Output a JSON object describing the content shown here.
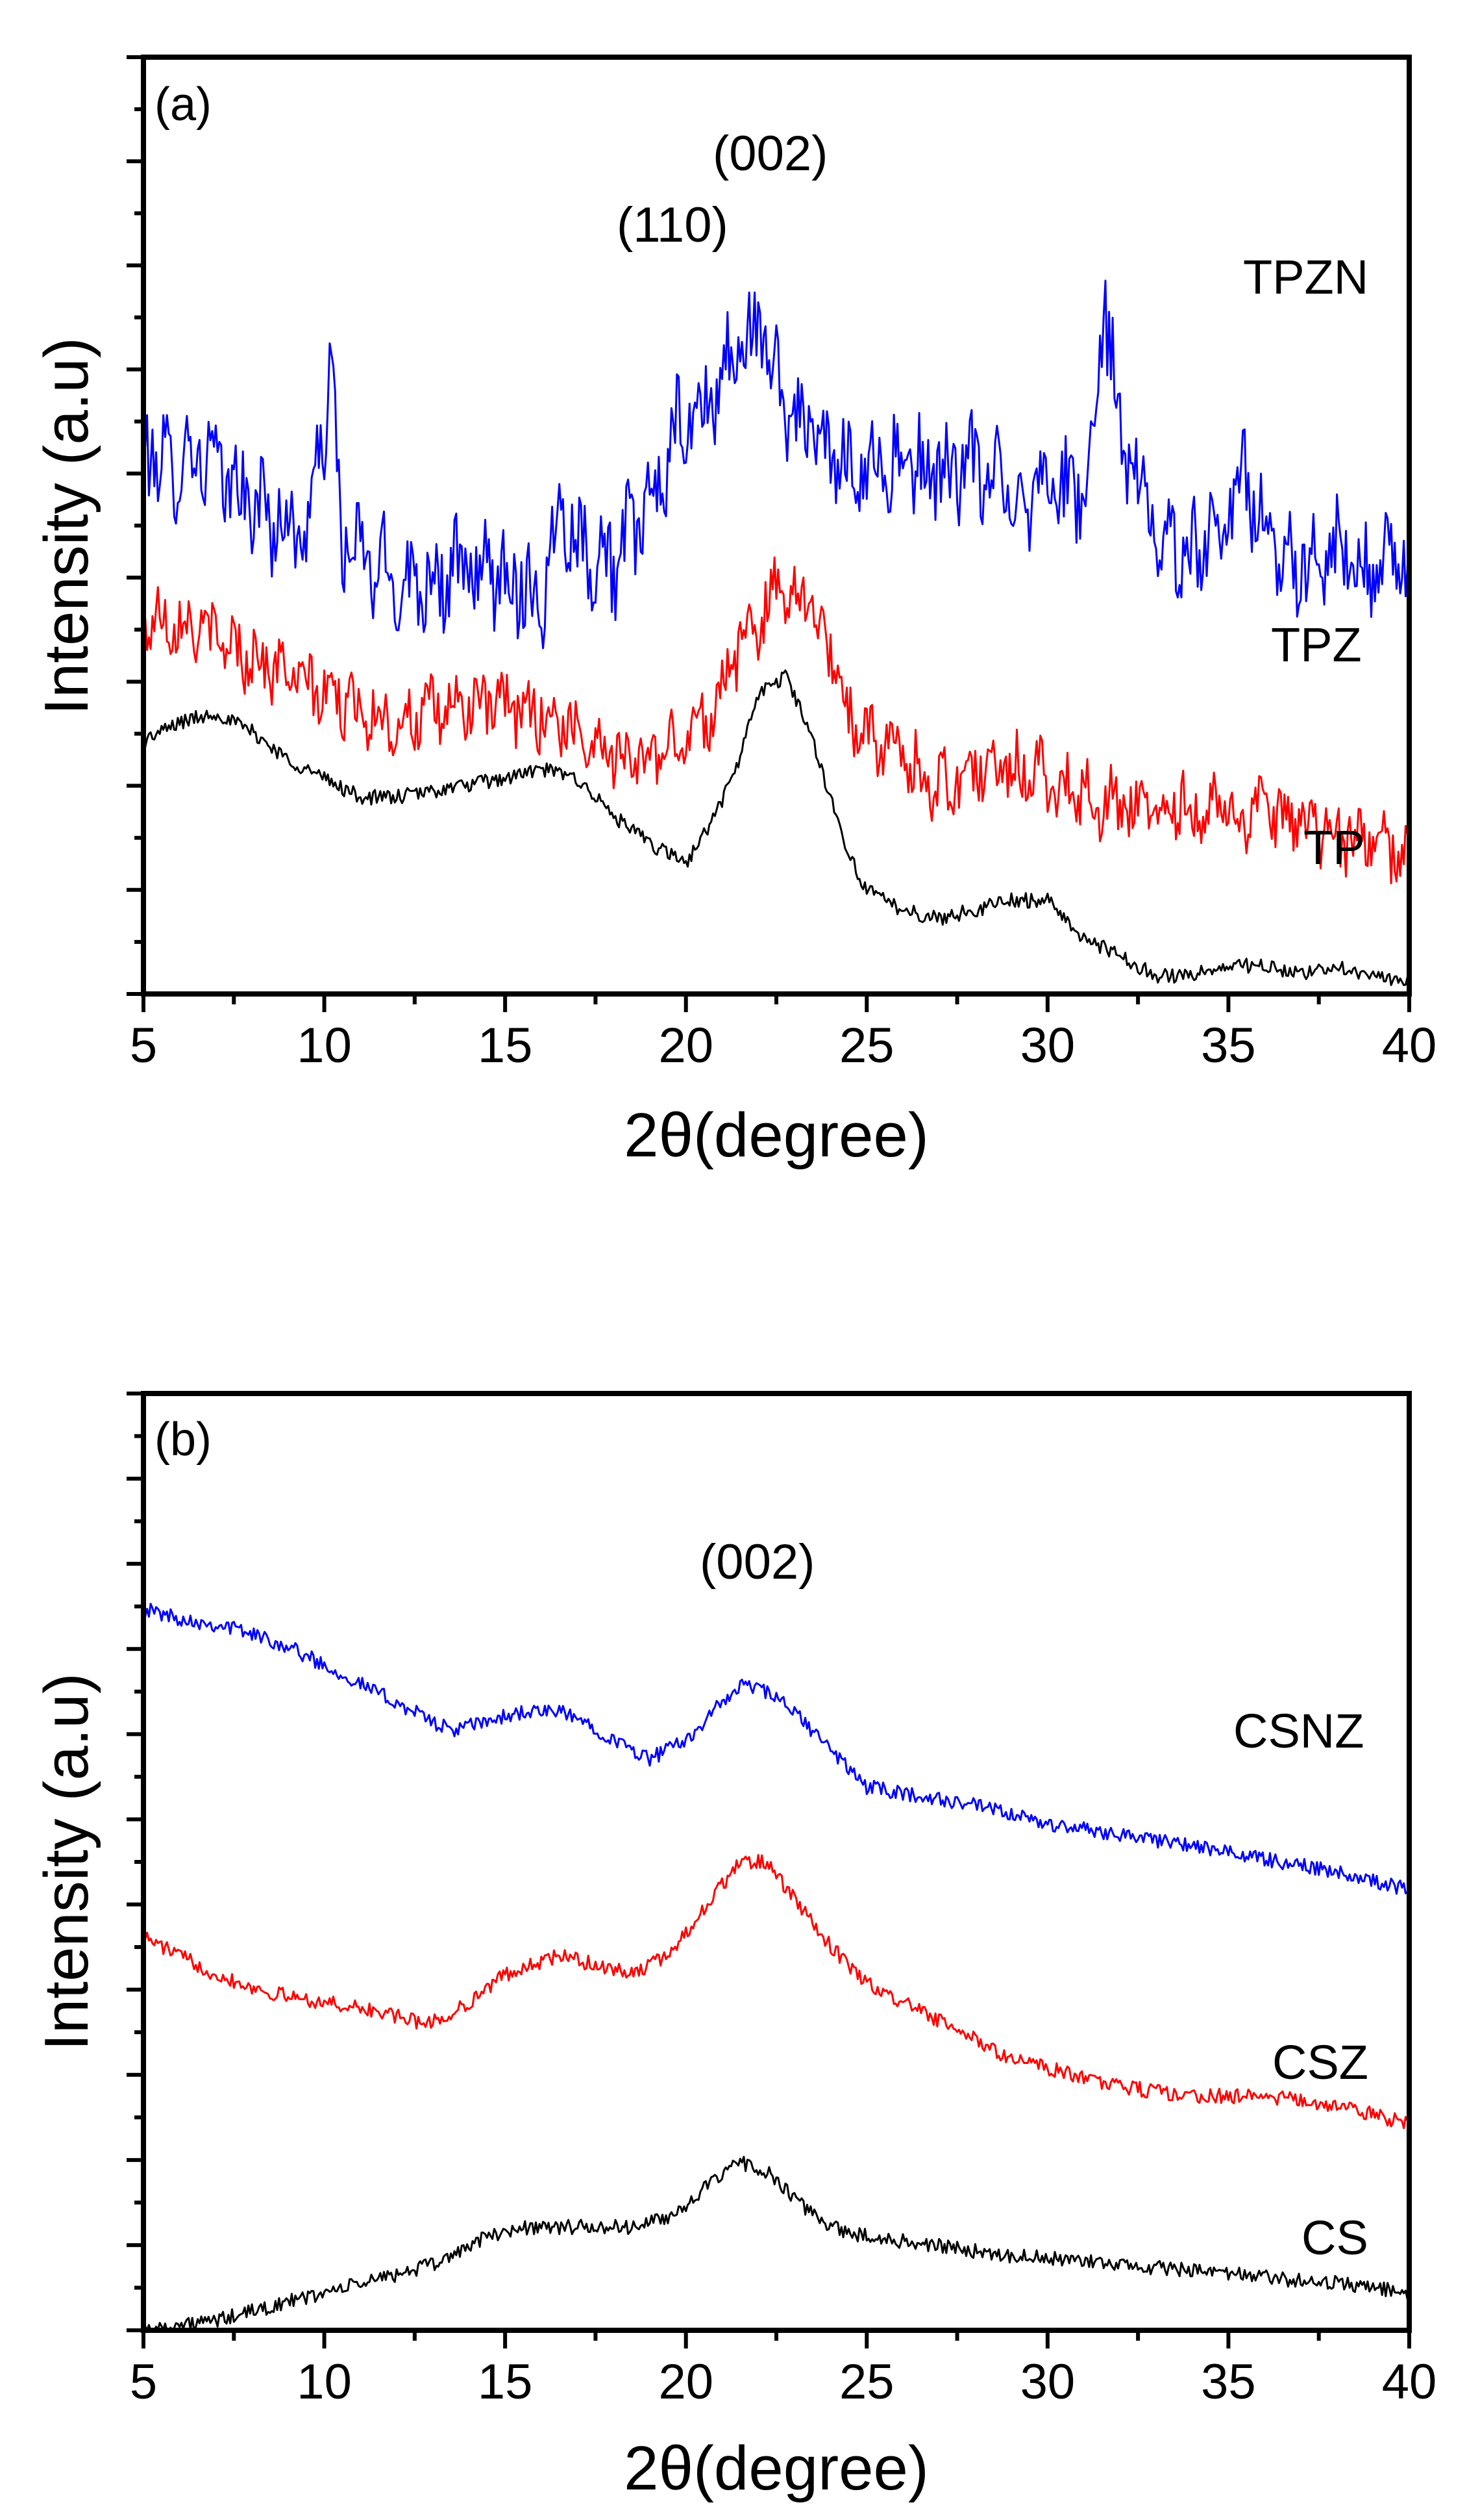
{
  "chart_data": [
    {
      "type": "line",
      "panel_label": "(a)",
      "xlabel": "2θ(degree)",
      "ylabel": "Intensity (a.u)",
      "xlim": [
        5,
        40
      ],
      "x_ticks": [
        5,
        10,
        15,
        20,
        25,
        30,
        35,
        40
      ],
      "y_tick_labels": "none",
      "annotations": [
        "(110)",
        "(002)"
      ],
      "series": [
        {
          "name": "TPZN",
          "color": "#0000ff",
          "noise": "strong-spiky",
          "points": [
            [
              5,
              0.6
            ],
            [
              5.5,
              0.56
            ],
            [
              6.5,
              0.58
            ],
            [
              7.5,
              0.54
            ],
            [
              8.5,
              0.51
            ],
            [
              9.5,
              0.49
            ],
            [
              10.2,
              0.66
            ],
            [
              10.5,
              0.48
            ],
            [
              12,
              0.44
            ],
            [
              14,
              0.45
            ],
            [
              15,
              0.45
            ],
            [
              16,
              0.42
            ],
            [
              16.6,
              0.53
            ],
            [
              17,
              0.48
            ],
            [
              18,
              0.46
            ],
            [
              19,
              0.52
            ],
            [
              19.8,
              0.6
            ],
            [
              20.5,
              0.62
            ],
            [
              21.3,
              0.68
            ],
            [
              22,
              0.71
            ],
            [
              22.8,
              0.63
            ],
            [
              24,
              0.57
            ],
            [
              26,
              0.56
            ],
            [
              28,
              0.56
            ],
            [
              29.4,
              0.53
            ],
            [
              30,
              0.56
            ],
            [
              30.6,
              0.53
            ],
            [
              31.2,
              0.55
            ],
            [
              31.6,
              0.74
            ],
            [
              32,
              0.6
            ],
            [
              33,
              0.49
            ],
            [
              34,
              0.47
            ],
            [
              35,
              0.52
            ],
            [
              35.5,
              0.56
            ],
            [
              36,
              0.48
            ],
            [
              37,
              0.46
            ],
            [
              38,
              0.47
            ],
            [
              39,
              0.45
            ],
            [
              40,
              0.46
            ]
          ]
        },
        {
          "name": "TPZ",
          "color": "#ff0000",
          "noise": "strong",
          "points": [
            [
              5,
              0.4
            ],
            [
              6,
              0.4
            ],
            [
              7,
              0.38
            ],
            [
              8,
              0.36
            ],
            [
              10,
              0.32
            ],
            [
              12,
              0.29
            ],
            [
              14,
              0.31
            ],
            [
              16,
              0.3
            ],
            [
              17.5,
              0.27
            ],
            [
              18.5,
              0.25
            ],
            [
              19.5,
              0.26
            ],
            [
              20.5,
              0.29
            ],
            [
              21.5,
              0.37
            ],
            [
              22.5,
              0.43
            ],
            [
              23.2,
              0.43
            ],
            [
              24,
              0.37
            ],
            [
              24.5,
              0.3
            ],
            [
              25,
              0.28
            ],
            [
              26,
              0.25
            ],
            [
              27,
              0.22
            ],
            [
              28,
              0.24
            ],
            [
              29.5,
              0.24
            ],
            [
              30.5,
              0.22
            ],
            [
              32,
              0.2
            ],
            [
              34,
              0.2
            ],
            [
              36,
              0.19
            ],
            [
              38,
              0.17
            ],
            [
              40,
              0.15
            ]
          ]
        },
        {
          "name": "TP",
          "color": "#000000",
          "noise": "mild",
          "points": [
            [
              5,
              0.27
            ],
            [
              6,
              0.29
            ],
            [
              7,
              0.3
            ],
            [
              8,
              0.28
            ],
            [
              9,
              0.25
            ],
            [
              10,
              0.23
            ],
            [
              11,
              0.21
            ],
            [
              12,
              0.21
            ],
            [
              13.5,
              0.22
            ],
            [
              15,
              0.23
            ],
            [
              16,
              0.24
            ],
            [
              17,
              0.23
            ],
            [
              18,
              0.19
            ],
            [
              19,
              0.16
            ],
            [
              19.5,
              0.15
            ],
            [
              20,
              0.14
            ],
            [
              20.5,
              0.17
            ],
            [
              21.3,
              0.23
            ],
            [
              22,
              0.32
            ],
            [
              22.8,
              0.34
            ],
            [
              23.5,
              0.27
            ],
            [
              24,
              0.21
            ],
            [
              24.5,
              0.15
            ],
            [
              25,
              0.11
            ],
            [
              26,
              0.09
            ],
            [
              27,
              0.08
            ],
            [
              28,
              0.09
            ],
            [
              29,
              0.1
            ],
            [
              30,
              0.1
            ],
            [
              31,
              0.06
            ],
            [
              32,
              0.04
            ],
            [
              33,
              0.02
            ],
            [
              34,
              0.02
            ],
            [
              35,
              0.03
            ],
            [
              36,
              0.03
            ],
            [
              37,
              0.02
            ],
            [
              38,
              0.03
            ],
            [
              39,
              0.02
            ],
            [
              40,
              0.01
            ]
          ]
        }
      ]
    },
    {
      "type": "line",
      "panel_label": "(b)",
      "xlabel": "2θ(degree)",
      "ylabel": "Intensity (a.u)",
      "xlim": [
        5,
        40
      ],
      "x_ticks": [
        5,
        10,
        15,
        20,
        25,
        30,
        35,
        40
      ],
      "y_tick_labels": "none",
      "annotations": [
        "(002)"
      ],
      "series": [
        {
          "name": "CSNZ",
          "color": "#0000ff",
          "noise": "mild",
          "points": [
            [
              5,
              0.77
            ],
            [
              6,
              0.76
            ],
            [
              7.5,
              0.75
            ],
            [
              9,
              0.73
            ],
            [
              10.5,
              0.7
            ],
            [
              11.5,
              0.68
            ],
            [
              12.5,
              0.66
            ],
            [
              13.5,
              0.64
            ],
            [
              14.5,
              0.65
            ],
            [
              15.5,
              0.66
            ],
            [
              16.5,
              0.66
            ],
            [
              17.2,
              0.65
            ],
            [
              18,
              0.63
            ],
            [
              18.5,
              0.62
            ],
            [
              19,
              0.61
            ],
            [
              20,
              0.63
            ],
            [
              21,
              0.67
            ],
            [
              21.6,
              0.69
            ],
            [
              22.3,
              0.68
            ],
            [
              23,
              0.66
            ],
            [
              24,
              0.62
            ],
            [
              25,
              0.58
            ],
            [
              26.5,
              0.57
            ],
            [
              28,
              0.56
            ],
            [
              30,
              0.54
            ],
            [
              32,
              0.53
            ],
            [
              35,
              0.51
            ],
            [
              38,
              0.49
            ],
            [
              40,
              0.47
            ]
          ]
        },
        {
          "name": "CSZ",
          "color": "#ff0000",
          "noise": "mild",
          "points": [
            [
              5,
              0.42
            ],
            [
              6,
              0.4
            ],
            [
              7,
              0.38
            ],
            [
              8.5,
              0.36
            ],
            [
              10,
              0.35
            ],
            [
              11.5,
              0.34
            ],
            [
              12.5,
              0.33
            ],
            [
              13.2,
              0.33
            ],
            [
              14,
              0.35
            ],
            [
              15,
              0.38
            ],
            [
              16.5,
              0.4
            ],
            [
              17.5,
              0.39
            ],
            [
              18.5,
              0.38
            ],
            [
              19.5,
              0.4
            ],
            [
              20.5,
              0.45
            ],
            [
              21.5,
              0.5
            ],
            [
              22.2,
              0.5
            ],
            [
              23,
              0.46
            ],
            [
              24,
              0.41
            ],
            [
              25,
              0.37
            ],
            [
              26,
              0.35
            ],
            [
              27,
              0.33
            ],
            [
              28,
              0.31
            ],
            [
              29,
              0.29
            ],
            [
              30,
              0.28
            ],
            [
              32,
              0.26
            ],
            [
              34,
              0.25
            ],
            [
              36,
              0.25
            ],
            [
              38,
              0.24
            ],
            [
              40,
              0.22
            ]
          ]
        },
        {
          "name": "CS",
          "color": "#000000",
          "noise": "mild",
          "points": [
            [
              5,
              0.0
            ],
            [
              7,
              0.01
            ],
            [
              9,
              0.03
            ],
            [
              11,
              0.05
            ],
            [
              13,
              0.07
            ],
            [
              14.5,
              0.1
            ],
            [
              15.5,
              0.11
            ],
            [
              17,
              0.11
            ],
            [
              18.5,
              0.11
            ],
            [
              19.5,
              0.12
            ],
            [
              20.5,
              0.15
            ],
            [
              21.5,
              0.18
            ],
            [
              22.2,
              0.17
            ],
            [
              23,
              0.14
            ],
            [
              24,
              0.11
            ],
            [
              25,
              0.1
            ],
            [
              27,
              0.09
            ],
            [
              29,
              0.08
            ],
            [
              32,
              0.07
            ],
            [
              35,
              0.06
            ],
            [
              38,
              0.05
            ],
            [
              40,
              0.04
            ]
          ]
        }
      ]
    }
  ]
}
